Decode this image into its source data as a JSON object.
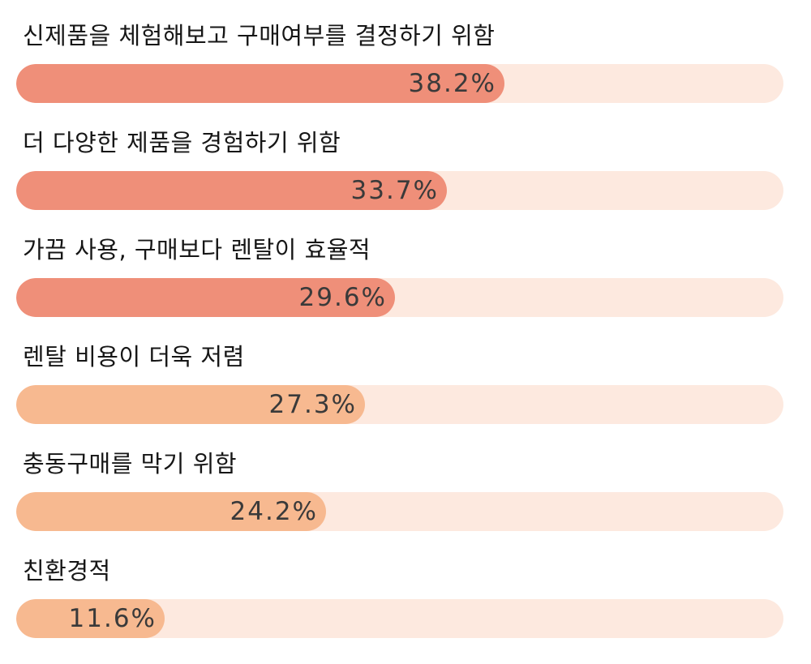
{
  "chart_data": {
    "type": "bar",
    "orientation": "horizontal",
    "value_suffix": "%",
    "xlim": [
      0,
      60
    ],
    "grid": false,
    "legend": false,
    "categories": [
      "신제품을 체험해보고 구매여부를 결정하기 위함",
      "더 다양한 제품을 경험하기 위함",
      "가끔 사용, 구매보다 렌탈이 효율적",
      "렌탈 비용이 더욱 저렴",
      "충동구매를 막기 위함",
      "친환경적"
    ],
    "values": [
      38.2,
      33.7,
      29.6,
      27.3,
      24.2,
      11.6
    ],
    "labels": [
      "38.2%",
      "33.7%",
      "29.6%",
      "27.3%",
      "24.2%",
      "11.6%"
    ]
  },
  "colors": {
    "fill_strong": "#ef8f79",
    "fill_light": "#f7b990",
    "track": "#fde9df",
    "label_text": "#161616",
    "value_text": "#3a3a3a"
  }
}
